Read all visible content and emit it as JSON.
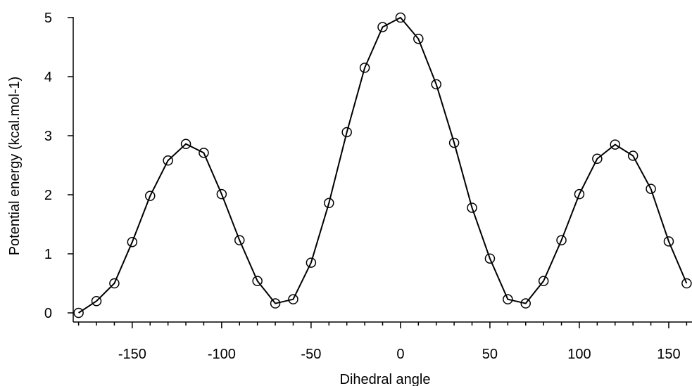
{
  "chart_data": {
    "type": "line",
    "title": "",
    "xlabel": "Dihedral angle",
    "ylabel": "Potential energy (kcal.mol-1)",
    "xlim": [
      -183,
      163
    ],
    "ylim": [
      -0.15,
      5.05
    ],
    "xticks": [
      -150,
      -100,
      -50,
      0,
      50,
      100,
      150
    ],
    "yticks": [
      0,
      1,
      2,
      3,
      4,
      5
    ],
    "grid": false,
    "legend": "none",
    "marker": "open-circle",
    "line_color": "#000000",
    "series": [
      {
        "x": [
          -180,
          -170,
          -160,
          -150,
          -140,
          -130,
          -120,
          -110,
          -100,
          -90,
          -80,
          -70,
          -60,
          -50,
          -40,
          -30,
          -20,
          -10,
          0,
          10,
          20,
          30,
          40,
          50,
          60,
          70,
          80,
          90,
          100,
          110,
          120,
          130,
          140,
          150,
          160
        ],
        "y": [
          0.0,
          0.2,
          0.5,
          1.2,
          1.98,
          2.58,
          2.86,
          2.71,
          2.01,
          1.23,
          0.54,
          0.16,
          0.23,
          0.85,
          1.86,
          3.06,
          4.15,
          4.84,
          5.0,
          4.64,
          3.87,
          2.88,
          1.78,
          0.92,
          0.23,
          0.16,
          0.54,
          1.23,
          2.01,
          2.61,
          2.85,
          2.66,
          2.1,
          1.21,
          0.5
        ]
      }
    ]
  }
}
